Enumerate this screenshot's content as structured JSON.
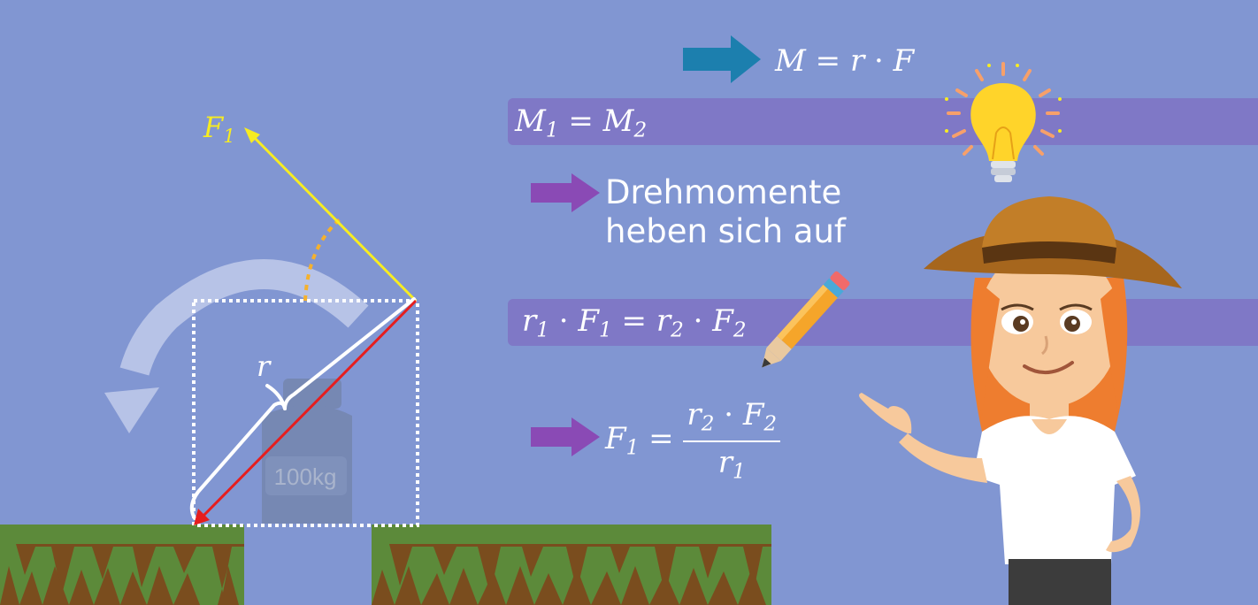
{
  "colors": {
    "background": "#8196d2",
    "band": "#7f78c6",
    "blue_arrow": "#1c7fae",
    "purple_arrow": "#8a4ab5",
    "force_arrow": "#f7ec21",
    "lever_arrow": "#e61e1e",
    "grass": "#5c8a3a",
    "soil": "#7a4d1e"
  },
  "scene": {
    "force_label": {
      "main": "F",
      "sub": "1"
    },
    "radius_label": "r",
    "weight_label": "100kg"
  },
  "formulas": {
    "torque": {
      "lhs": "M",
      "eq": "=",
      "r": "r",
      "dot": "·",
      "f": "F"
    },
    "balance": {
      "m1": "M",
      "s1": "1",
      "eq": "=",
      "m2": "M",
      "s2": "2"
    },
    "note": {
      "line1": "Drehmomente",
      "line2": "heben sich auf"
    },
    "product": {
      "r1": "r",
      "s_r1": "1",
      "dot1": "·",
      "f1": "F",
      "s_f1": "1",
      "eq": "=",
      "r2": "r",
      "s_r2": "2",
      "dot2": "·",
      "f2": "F",
      "s_f2": "2"
    },
    "result": {
      "f1": "F",
      "s_f1": "1",
      "eq": "=",
      "num_r": "r",
      "num_rs": "2",
      "num_dot": "·",
      "num_f": "F",
      "num_fs": "2",
      "den_r": "r",
      "den_rs": "1"
    }
  },
  "icons": [
    "circular-arrow-icon",
    "light-bulb-icon",
    "pencil-icon",
    "arrow-right-icon"
  ]
}
